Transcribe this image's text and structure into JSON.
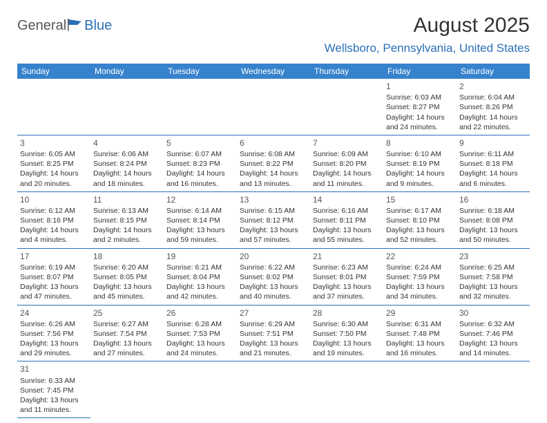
{
  "logo": {
    "part1": "General",
    "part2": "Blue"
  },
  "title": {
    "month": "August 2025",
    "location": "Wellsboro, Pennsylvania, United States"
  },
  "colors": {
    "header_bg": "#3682cd",
    "header_text": "#ffffff",
    "accent": "#2970b8",
    "cell_border": "#2970b8",
    "text": "#333333"
  },
  "weekdays": [
    "Sunday",
    "Monday",
    "Tuesday",
    "Wednesday",
    "Thursday",
    "Friday",
    "Saturday"
  ],
  "weeks": [
    [
      null,
      null,
      null,
      null,
      null,
      {
        "day": "1",
        "sunrise": "Sunrise: 6:03 AM",
        "sunset": "Sunset: 8:27 PM",
        "daylight": "Daylight: 14 hours and 24 minutes."
      },
      {
        "day": "2",
        "sunrise": "Sunrise: 6:04 AM",
        "sunset": "Sunset: 8:26 PM",
        "daylight": "Daylight: 14 hours and 22 minutes."
      }
    ],
    [
      {
        "day": "3",
        "sunrise": "Sunrise: 6:05 AM",
        "sunset": "Sunset: 8:25 PM",
        "daylight": "Daylight: 14 hours and 20 minutes."
      },
      {
        "day": "4",
        "sunrise": "Sunrise: 6:06 AM",
        "sunset": "Sunset: 8:24 PM",
        "daylight": "Daylight: 14 hours and 18 minutes."
      },
      {
        "day": "5",
        "sunrise": "Sunrise: 6:07 AM",
        "sunset": "Sunset: 8:23 PM",
        "daylight": "Daylight: 14 hours and 16 minutes."
      },
      {
        "day": "6",
        "sunrise": "Sunrise: 6:08 AM",
        "sunset": "Sunset: 8:22 PM",
        "daylight": "Daylight: 14 hours and 13 minutes."
      },
      {
        "day": "7",
        "sunrise": "Sunrise: 6:09 AM",
        "sunset": "Sunset: 8:20 PM",
        "daylight": "Daylight: 14 hours and 11 minutes."
      },
      {
        "day": "8",
        "sunrise": "Sunrise: 6:10 AM",
        "sunset": "Sunset: 8:19 PM",
        "daylight": "Daylight: 14 hours and 9 minutes."
      },
      {
        "day": "9",
        "sunrise": "Sunrise: 6:11 AM",
        "sunset": "Sunset: 8:18 PM",
        "daylight": "Daylight: 14 hours and 6 minutes."
      }
    ],
    [
      {
        "day": "10",
        "sunrise": "Sunrise: 6:12 AM",
        "sunset": "Sunset: 8:16 PM",
        "daylight": "Daylight: 14 hours and 4 minutes."
      },
      {
        "day": "11",
        "sunrise": "Sunrise: 6:13 AM",
        "sunset": "Sunset: 8:15 PM",
        "daylight": "Daylight: 14 hours and 2 minutes."
      },
      {
        "day": "12",
        "sunrise": "Sunrise: 6:14 AM",
        "sunset": "Sunset: 8:14 PM",
        "daylight": "Daylight: 13 hours and 59 minutes."
      },
      {
        "day": "13",
        "sunrise": "Sunrise: 6:15 AM",
        "sunset": "Sunset: 8:12 PM",
        "daylight": "Daylight: 13 hours and 57 minutes."
      },
      {
        "day": "14",
        "sunrise": "Sunrise: 6:16 AM",
        "sunset": "Sunset: 8:11 PM",
        "daylight": "Daylight: 13 hours and 55 minutes."
      },
      {
        "day": "15",
        "sunrise": "Sunrise: 6:17 AM",
        "sunset": "Sunset: 8:10 PM",
        "daylight": "Daylight: 13 hours and 52 minutes."
      },
      {
        "day": "16",
        "sunrise": "Sunrise: 6:18 AM",
        "sunset": "Sunset: 8:08 PM",
        "daylight": "Daylight: 13 hours and 50 minutes."
      }
    ],
    [
      {
        "day": "17",
        "sunrise": "Sunrise: 6:19 AM",
        "sunset": "Sunset: 8:07 PM",
        "daylight": "Daylight: 13 hours and 47 minutes."
      },
      {
        "day": "18",
        "sunrise": "Sunrise: 6:20 AM",
        "sunset": "Sunset: 8:05 PM",
        "daylight": "Daylight: 13 hours and 45 minutes."
      },
      {
        "day": "19",
        "sunrise": "Sunrise: 6:21 AM",
        "sunset": "Sunset: 8:04 PM",
        "daylight": "Daylight: 13 hours and 42 minutes."
      },
      {
        "day": "20",
        "sunrise": "Sunrise: 6:22 AM",
        "sunset": "Sunset: 8:02 PM",
        "daylight": "Daylight: 13 hours and 40 minutes."
      },
      {
        "day": "21",
        "sunrise": "Sunrise: 6:23 AM",
        "sunset": "Sunset: 8:01 PM",
        "daylight": "Daylight: 13 hours and 37 minutes."
      },
      {
        "day": "22",
        "sunrise": "Sunrise: 6:24 AM",
        "sunset": "Sunset: 7:59 PM",
        "daylight": "Daylight: 13 hours and 34 minutes."
      },
      {
        "day": "23",
        "sunrise": "Sunrise: 6:25 AM",
        "sunset": "Sunset: 7:58 PM",
        "daylight": "Daylight: 13 hours and 32 minutes."
      }
    ],
    [
      {
        "day": "24",
        "sunrise": "Sunrise: 6:26 AM",
        "sunset": "Sunset: 7:56 PM",
        "daylight": "Daylight: 13 hours and 29 minutes."
      },
      {
        "day": "25",
        "sunrise": "Sunrise: 6:27 AM",
        "sunset": "Sunset: 7:54 PM",
        "daylight": "Daylight: 13 hours and 27 minutes."
      },
      {
        "day": "26",
        "sunrise": "Sunrise: 6:28 AM",
        "sunset": "Sunset: 7:53 PM",
        "daylight": "Daylight: 13 hours and 24 minutes."
      },
      {
        "day": "27",
        "sunrise": "Sunrise: 6:29 AM",
        "sunset": "Sunset: 7:51 PM",
        "daylight": "Daylight: 13 hours and 21 minutes."
      },
      {
        "day": "28",
        "sunrise": "Sunrise: 6:30 AM",
        "sunset": "Sunset: 7:50 PM",
        "daylight": "Daylight: 13 hours and 19 minutes."
      },
      {
        "day": "29",
        "sunrise": "Sunrise: 6:31 AM",
        "sunset": "Sunset: 7:48 PM",
        "daylight": "Daylight: 13 hours and 16 minutes."
      },
      {
        "day": "30",
        "sunrise": "Sunrise: 6:32 AM",
        "sunset": "Sunset: 7:46 PM",
        "daylight": "Daylight: 13 hours and 14 minutes."
      }
    ],
    [
      {
        "day": "31",
        "sunrise": "Sunrise: 6:33 AM",
        "sunset": "Sunset: 7:45 PM",
        "daylight": "Daylight: 13 hours and 11 minutes."
      },
      null,
      null,
      null,
      null,
      null,
      null
    ]
  ]
}
